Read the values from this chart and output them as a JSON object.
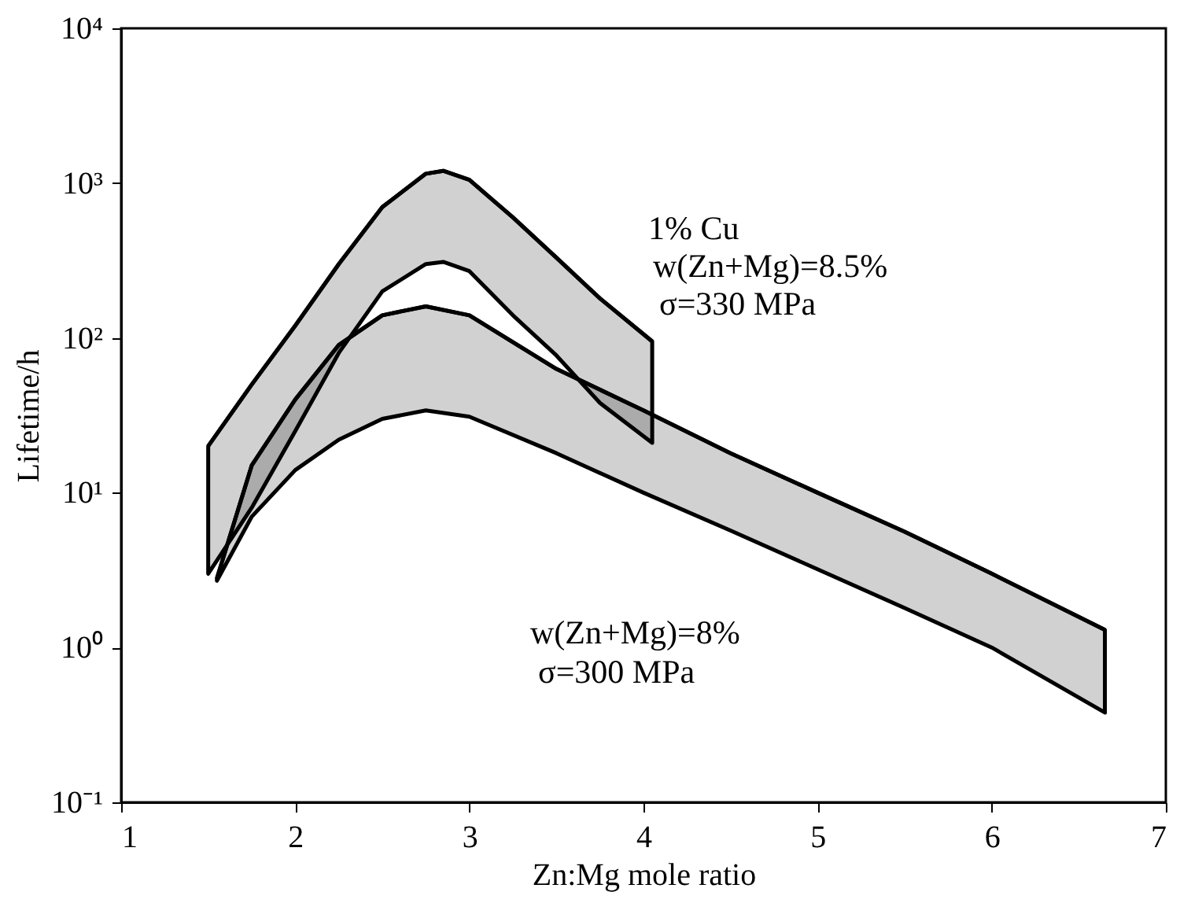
{
  "chart_data": {
    "type": "line",
    "xlabel": "Zn:Mg mole ratio",
    "ylabel": "Lifetime/h",
    "log": "y",
    "grid": false,
    "marker": "none",
    "xlim": [
      1,
      7
    ],
    "xticks": [
      1,
      2,
      3,
      4,
      5,
      6,
      7
    ],
    "ylim": [
      0.1,
      10000
    ],
    "yticks": [
      {
        "value": 0.1,
        "label": "10⁻¹"
      },
      {
        "value": 1,
        "label": "10⁰"
      },
      {
        "value": 10,
        "label": "10¹"
      },
      {
        "value": 100,
        "label": "10²"
      },
      {
        "value": 1000,
        "label": "10³"
      },
      {
        "value": 10000,
        "label": "10⁴"
      }
    ],
    "series": [
      {
        "color": "#000000",
        "x": [
          1.5,
          1.75,
          2,
          2.25,
          2.5,
          2.75,
          2.85,
          3,
          3.25,
          3.5,
          3.75,
          4.05
        ],
        "values": [
          20,
          50,
          120,
          300,
          700,
          1150,
          1200,
          1050,
          600,
          330,
          180,
          95
        ],
        "lower": [
          3,
          8,
          25,
          80,
          200,
          300,
          310,
          270,
          140,
          77,
          38,
          21
        ],
        "upper": [
          20,
          50,
          120,
          300,
          700,
          1150,
          1200,
          1050,
          600,
          330,
          180,
          95
        ]
      },
      {
        "color": "#000000",
        "x": [
          1.55,
          1.75,
          2,
          2.25,
          2.5,
          2.75,
          3,
          3.5,
          4,
          4.5,
          5,
          5.5,
          6,
          6.65
        ],
        "values": [
          2.8,
          15,
          40,
          90,
          140,
          160,
          140,
          63,
          34,
          18,
          10,
          5.6,
          3,
          1.3
        ],
        "lower": [
          2.7,
          7,
          14,
          22,
          30,
          34,
          31,
          18,
          10,
          5.7,
          3.2,
          1.8,
          1,
          0.38
        ],
        "upper": [
          2.8,
          15,
          40,
          90,
          140,
          160,
          140,
          63,
          34,
          18,
          10,
          5.6,
          3,
          1.3
        ]
      }
    ],
    "annotations": [
      "1% Cu",
      "w(Zn+Mg)=8.5%",
      "σ=330 MPa",
      "w(Zn+Mg)=8%",
      "σ=300 MPa"
    ]
  }
}
